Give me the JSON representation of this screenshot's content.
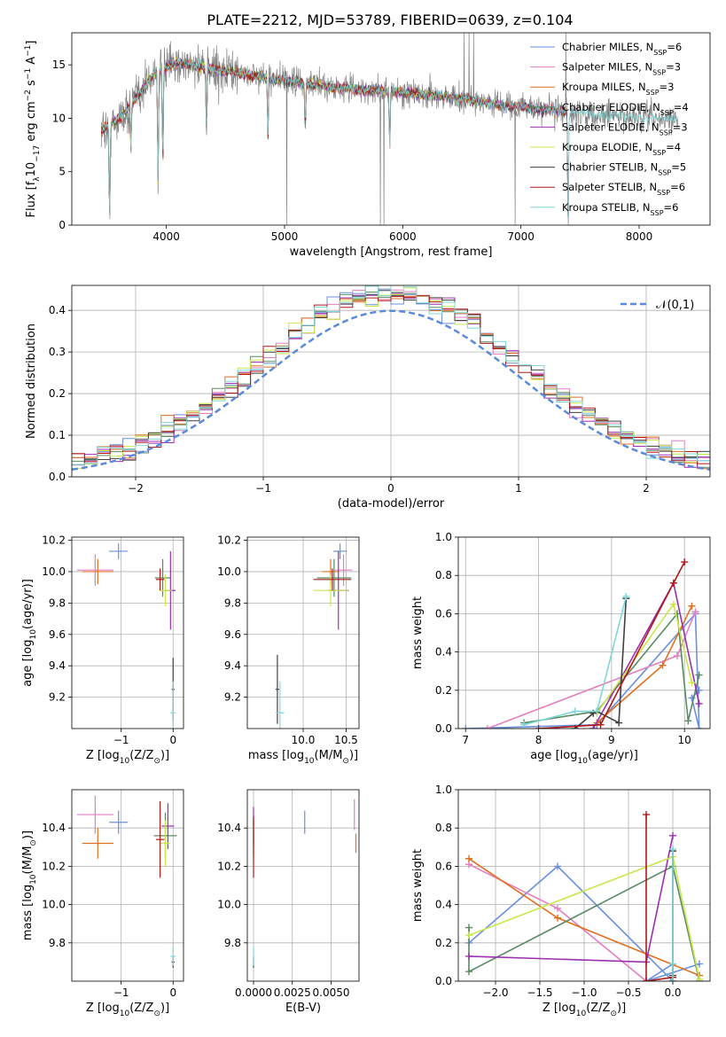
{
  "figure": {
    "title": "PLATE=2212, MJD=53789, FIBERID=0639, z=0.104"
  },
  "models": [
    {
      "label": "Chabrier MILES, N",
      "sub": "SSP",
      "nssp": "=6",
      "color": "#6a8fdc"
    },
    {
      "label": "Salpeter MILES, N",
      "sub": "SSP",
      "nssp": "=3",
      "color": "#e37fbf"
    },
    {
      "label": "Kroupa MILES, N",
      "sub": "SSP",
      "nssp": "=3",
      "color": "#e07020"
    },
    {
      "label": "Chabrier ELODIE, N",
      "sub": "SSP",
      "nssp": "=4",
      "color": "#5a8a64"
    },
    {
      "label": "Salpeter ELODIE, N",
      "sub": "SSP",
      "nssp": "=3",
      "color": "#9b30b0"
    },
    {
      "label": "Kroupa ELODIE, N",
      "sub": "SSP",
      "nssp": "=4",
      "color": "#c8e84a"
    },
    {
      "label": "Chabrier STELIB, N",
      "sub": "SSP",
      "nssp": "=5",
      "color": "#404040"
    },
    {
      "label": "Salpeter STELIB, N",
      "sub": "SSP",
      "nssp": "=6",
      "color": "#b01818"
    },
    {
      "label": "Kroupa STELIB, N",
      "sub": "SSP",
      "nssp": "=6",
      "color": "#80d8d8"
    }
  ],
  "chart_data": [
    {
      "id": "spectrum",
      "type": "line",
      "title": "PLATE=2212, MJD=53789, FIBERID=0639, z=0.104",
      "xlabel": "wavelength [Angstrom, rest frame]",
      "ylabel_parts": [
        "Flux [f",
        "λ",
        "10",
        "−17",
        " erg cm",
        "−2",
        " s",
        "−1",
        " A",
        "−1",
        "]"
      ],
      "xlim": [
        3200,
        8600
      ],
      "ylim": [
        0,
        18
      ],
      "xticks": [
        4000,
        5000,
        6000,
        7000,
        8000
      ],
      "yticks": [
        0,
        5,
        10,
        15
      ],
      "data_color": "#808080",
      "continuum": [
        [
          3450,
          8.8
        ],
        [
          3650,
          10.5
        ],
        [
          3900,
          14.2
        ],
        [
          4100,
          15.2
        ],
        [
          4400,
          14.6
        ],
        [
          4800,
          13.9
        ],
        [
          5200,
          13.2
        ],
        [
          5600,
          12.7
        ],
        [
          6000,
          12.4
        ],
        [
          6400,
          12.0
        ],
        [
          6800,
          11.3
        ],
        [
          7200,
          10.8
        ],
        [
          7600,
          10.4
        ],
        [
          8000,
          10.0
        ],
        [
          8300,
          9.9
        ]
      ],
      "absorption": [
        {
          "x": 3520,
          "y": 0
        },
        {
          "x": 3700,
          "y": 7.2
        },
        {
          "x": 3930,
          "y": 4.2
        },
        {
          "x": 3970,
          "y": 5.6
        },
        {
          "x": 4340,
          "y": 8.5
        },
        {
          "x": 4860,
          "y": 8.3
        },
        {
          "x": 5175,
          "y": 9.0
        },
        {
          "x": 5890,
          "y": 7.2
        },
        {
          "x": 7400,
          "y": 0
        }
      ],
      "data_spikes": [
        {
          "x": 5020,
          "y": 0
        },
        {
          "x": 5810,
          "y": 0
        },
        {
          "x": 5840,
          "y": 0
        },
        {
          "x": 6520,
          "y": 18
        },
        {
          "x": 6560,
          "y": 18
        },
        {
          "x": 6600,
          "y": 18
        },
        {
          "x": 6950,
          "y": 0
        },
        {
          "x": 7380,
          "y": 18
        }
      ]
    },
    {
      "id": "residuals",
      "type": "histogram",
      "xlabel": "(data-model)/error",
      "ylabel": "Normed distribution",
      "xlim": [
        -2.5,
        2.5
      ],
      "ylim": [
        0,
        0.46
      ],
      "xticks": [
        -2,
        -1,
        0,
        1,
        2
      ],
      "yticks": [
        0,
        0.1,
        0.2,
        0.3,
        0.4
      ],
      "bin_width": 0.1,
      "reference": {
        "label": "𝒩(0,1)",
        "color": "#5b8ad8",
        "mean": 0,
        "sigma": 1
      }
    },
    {
      "id": "age-vs-z",
      "type": "scatter",
      "xlabel_parts": [
        "Z [log",
        "10",
        "(Z/Z",
        "⊙",
        ")]"
      ],
      "ylabel_parts": [
        "age  [log",
        "10",
        "(age/yr)]"
      ],
      "xlim": [
        -1.95,
        0.2
      ],
      "ylim": [
        9.0,
        10.22
      ],
      "xticks": [
        -1,
        0
      ],
      "yticks": [
        9.2,
        9.4,
        9.6,
        9.8,
        10.0,
        10.2
      ],
      "points": [
        {
          "m": 0,
          "x": -1.05,
          "y": 10.13,
          "xe": 0.18,
          "ye": 0.05
        },
        {
          "m": 1,
          "x": -1.5,
          "y": 10.01,
          "xe": 0.35,
          "ye": 0.1
        },
        {
          "m": 2,
          "x": -1.45,
          "y": 10.0,
          "xe": 0.3,
          "ye": 0.08
        },
        {
          "m": 3,
          "x": -0.2,
          "y": 9.96,
          "xe": 0.15,
          "ye": 0.12
        },
        {
          "m": 4,
          "x": -0.05,
          "y": 9.88,
          "xe": 0.1,
          "ye": 0.25
        },
        {
          "m": 5,
          "x": -0.15,
          "y": 9.88,
          "xe": 0.12,
          "ye": 0.1
        },
        {
          "m": 6,
          "x": 0.0,
          "y": 9.25,
          "xe": 0.03,
          "ye": 0.2
        },
        {
          "m": 7,
          "x": -0.25,
          "y": 9.95,
          "xe": 0.08,
          "ye": 0.07
        },
        {
          "m": 8,
          "x": 0.0,
          "y": 9.1,
          "xe": 0.05,
          "ye": 0.2
        }
      ]
    },
    {
      "id": "age-vs-mass",
      "type": "scatter",
      "xlabel_parts": [
        "mass [log",
        "10",
        "(M/M",
        "⊙",
        ")]"
      ],
      "xlim": [
        9.35,
        10.65
      ],
      "ylim": [
        9.0,
        10.22
      ],
      "xticks": [
        10.0,
        10.5
      ],
      "yticks": [
        9.2,
        9.4,
        9.6,
        9.8,
        10.0,
        10.2
      ],
      "points": [
        {
          "m": 0,
          "x": 10.43,
          "y": 10.13,
          "xe": 0.08,
          "ye": 0.05
        },
        {
          "m": 1,
          "x": 10.47,
          "y": 10.01,
          "xe": 0.1,
          "ye": 0.1
        },
        {
          "m": 2,
          "x": 10.32,
          "y": 10.0,
          "xe": 0.1,
          "ye": 0.08
        },
        {
          "m": 3,
          "x": 10.36,
          "y": 9.96,
          "xe": 0.2,
          "ye": 0.12
        },
        {
          "m": 4,
          "x": 10.41,
          "y": 9.88,
          "xe": 0.12,
          "ye": 0.25
        },
        {
          "m": 5,
          "x": 10.32,
          "y": 9.88,
          "xe": 0.2,
          "ye": 0.1
        },
        {
          "m": 6,
          "x": 9.7,
          "y": 9.25,
          "xe": 0.02,
          "ye": 0.22
        },
        {
          "m": 7,
          "x": 10.34,
          "y": 9.95,
          "xe": 0.22,
          "ye": 0.07
        },
        {
          "m": 8,
          "x": 9.73,
          "y": 9.1,
          "xe": 0.05,
          "ye": 0.2
        }
      ]
    },
    {
      "id": "mass-weight-vs-age",
      "type": "line",
      "xlabel_parts": [
        "age  [log",
        "10",
        "(age/yr)]"
      ],
      "ylabel": "mass weight",
      "xlim": [
        6.9,
        10.35
      ],
      "ylim": [
        0,
        1
      ],
      "xticks": [
        7,
        8,
        9,
        10
      ],
      "yticks": [
        0,
        0.2,
        0.4,
        0.6,
        0.8,
        1.0
      ],
      "series": [
        {
          "m": 0,
          "x": [
            7.0,
            8.8,
            10.15,
            10.2,
            10.1,
            10.2
          ],
          "y": [
            0.0,
            0.02,
            0.6,
            0.0,
            0.16,
            0.2
          ]
        },
        {
          "m": 1,
          "x": [
            7.3,
            9.9,
            10.15
          ],
          "y": [
            0.0,
            0.38,
            0.61
          ]
        },
        {
          "m": 2,
          "x": [
            8.8,
            9.7,
            10.1
          ],
          "y": [
            0.03,
            0.33,
            0.64
          ]
        },
        {
          "m": 3,
          "x": [
            7.8,
            8.8,
            9.9,
            10.05,
            10.2
          ],
          "y": [
            0.03,
            0.09,
            0.6,
            0.04,
            0.28
          ]
        },
        {
          "m": 4,
          "x": [
            8.75,
            9.85,
            10.2
          ],
          "y": [
            0.0,
            0.76,
            0.13
          ]
        },
        {
          "m": 5,
          "x": [
            8.8,
            9.85,
            10.1
          ],
          "y": [
            0.08,
            0.65,
            0.24
          ]
        },
        {
          "m": 6,
          "x": [
            8.5,
            8.75,
            8.8,
            9.1,
            9.2
          ],
          "y": [
            0.0,
            0.08,
            0.09,
            0.03,
            0.68
          ]
        },
        {
          "m": 7,
          "x": [
            8.0,
            8.85,
            9.85,
            10.0
          ],
          "y": [
            0.0,
            0.02,
            0.76,
            0.87
          ]
        },
        {
          "m": 8,
          "x": [
            7.8,
            8.5,
            8.8,
            9.2
          ],
          "y": [
            0.02,
            0.09,
            0.09,
            0.69
          ]
        }
      ]
    },
    {
      "id": "mass-vs-z",
      "type": "scatter",
      "xlabel_parts": [
        "Z [log",
        "10",
        "(Z/Z",
        "⊙",
        ")]"
      ],
      "ylabel_parts": [
        "mass [log",
        "10",
        "(M/M",
        "⊙",
        ")]"
      ],
      "xlim": [
        -1.95,
        0.2
      ],
      "ylim": [
        9.6,
        10.6
      ],
      "xticks": [
        -1,
        0
      ],
      "yticks": [
        9.8,
        10.0,
        10.2,
        10.4
      ],
      "points": [
        {
          "m": 0,
          "x": -1.05,
          "y": 10.43,
          "xe": 0.18,
          "ye": 0.06
        },
        {
          "m": 1,
          "x": -1.5,
          "y": 10.47,
          "xe": 0.35,
          "ye": 0.1
        },
        {
          "m": 2,
          "x": -1.45,
          "y": 10.32,
          "xe": 0.3,
          "ye": 0.08
        },
        {
          "m": 3,
          "x": -0.15,
          "y": 10.36,
          "xe": 0.22,
          "ye": 0.12
        },
        {
          "m": 4,
          "x": -0.1,
          "y": 10.41,
          "xe": 0.12,
          "ye": 0.12
        },
        {
          "m": 5,
          "x": -0.15,
          "y": 10.32,
          "xe": 0.1,
          "ye": 0.12
        },
        {
          "m": 6,
          "x": 0.0,
          "y": 9.7,
          "xe": 0.03,
          "ye": 0.03
        },
        {
          "m": 7,
          "x": -0.25,
          "y": 10.34,
          "xe": 0.08,
          "ye": 0.2
        },
        {
          "m": 8,
          "x": 0.0,
          "y": 9.73,
          "xe": 0.05,
          "ye": 0.05
        }
      ]
    },
    {
      "id": "mass-vs-ebv",
      "type": "scatter",
      "xlabel": "E(B-V)",
      "xlim": [
        -0.0004,
        0.0068
      ],
      "ylim": [
        9.6,
        10.6
      ],
      "xticks": [
        0.0,
        0.0025,
        0.005
      ],
      "xtick_labels": [
        "0.0000",
        "0.0025",
        "0.0050"
      ],
      "yticks": [
        9.8,
        10.0,
        10.2,
        10.4
      ],
      "points": [
        {
          "m": 0,
          "x": 0.0033,
          "y": 10.43,
          "xe": 0,
          "ye": 0.06
        },
        {
          "m": 1,
          "x": 0.0065,
          "y": 10.47,
          "xe": 0,
          "ye": 0.08
        },
        {
          "m": 2,
          "x": 0.0066,
          "y": 10.32,
          "xe": 0,
          "ye": 0.05
        },
        {
          "m": 3,
          "x": 0.0,
          "y": 10.36,
          "xe": 0,
          "ye": 0.1
        },
        {
          "m": 4,
          "x": 0.0,
          "y": 10.41,
          "xe": 0,
          "ye": 0.1
        },
        {
          "m": 5,
          "x": 0.0,
          "y": 10.32,
          "xe": 0,
          "ye": 0.1
        },
        {
          "m": 6,
          "x": 0.0,
          "y": 9.7,
          "xe": 0,
          "ye": 0.03
        },
        {
          "m": 7,
          "x": 0.0,
          "y": 10.3,
          "xe": 0,
          "ye": 0.16
        },
        {
          "m": 8,
          "x": 0.0,
          "y": 9.73,
          "xe": 0,
          "ye": 0.05
        }
      ]
    },
    {
      "id": "mass-weight-vs-z",
      "type": "line",
      "xlabel_parts": [
        "Z [log",
        "10",
        "(Z/Z",
        "⊙",
        ")]"
      ],
      "ylabel": "mass weight",
      "xlim": [
        -2.42,
        0.42
      ],
      "ylim": [
        0,
        1
      ],
      "xticks": [
        -2.0,
        -1.5,
        -1.0,
        -0.5,
        0.0
      ],
      "xtick_labels": [
        "−2.0",
        "−1.5",
        "−1.0",
        "−0.5",
        "0.0"
      ],
      "yticks": [
        0,
        0.2,
        0.4,
        0.6,
        0.8,
        1.0
      ],
      "series": [
        {
          "m": 0,
          "x": [
            -2.3,
            -1.3,
            0.0,
            0.0,
            -0.3,
            0.3
          ],
          "y": [
            0.2,
            0.6,
            0.0,
            0.09,
            0.0,
            0.09
          ]
        },
        {
          "m": 1,
          "x": [
            -2.3,
            -1.3,
            -0.3
          ],
          "y": [
            0.61,
            0.38,
            0.0
          ]
        },
        {
          "m": 2,
          "x": [
            -2.3,
            -1.3,
            0.3
          ],
          "y": [
            0.64,
            0.33,
            0.03
          ]
        },
        {
          "m": 3,
          "x": [
            -2.3,
            -2.3,
            0.0,
            0.3
          ],
          "y": [
            0.28,
            0.05,
            0.6,
            0.0
          ]
        },
        {
          "m": 4,
          "x": [
            -2.3,
            -0.3,
            0.0
          ],
          "y": [
            0.13,
            0.1,
            0.76
          ]
        },
        {
          "m": 5,
          "x": [
            -2.3,
            0.0,
            0.3
          ],
          "y": [
            0.24,
            0.65,
            0.01
          ]
        },
        {
          "m": 6,
          "x": [
            0.0,
            0.0,
            0.0
          ],
          "y": [
            0.0,
            0.68,
            0.03
          ]
        },
        {
          "m": 7,
          "x": [
            -0.3,
            -0.3,
            0.0
          ],
          "y": [
            0.87,
            0.0,
            0.02
          ]
        },
        {
          "m": 8,
          "x": [
            0.0,
            0.0,
            0.0
          ],
          "y": [
            0.0,
            0.69,
            0.09
          ]
        }
      ]
    }
  ]
}
